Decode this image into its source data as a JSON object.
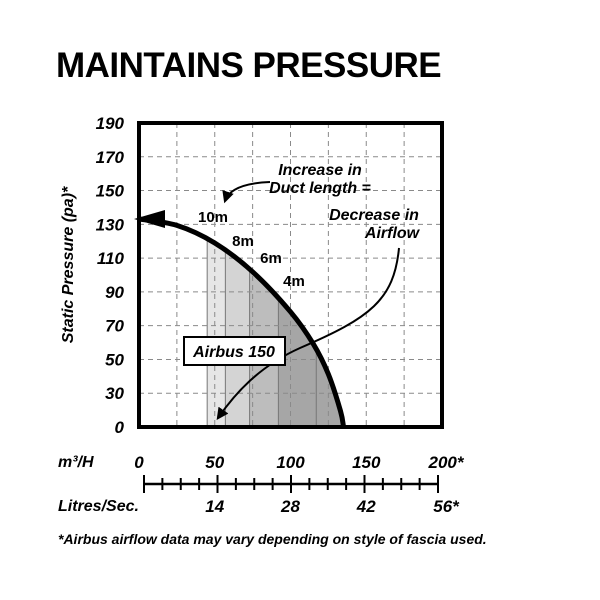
{
  "title": "MAINTAINS PRESSURE",
  "footnote": "*Airbus airflow data may vary depending on style of fascia used.",
  "chart_data": {
    "type": "area",
    "product_label": "Airbus 150",
    "y_axis": {
      "label": "Static Pressure (pa)*",
      "ticks": [
        "190",
        "170",
        "150",
        "130",
        "110",
        "90",
        "70",
        "50",
        "30",
        "0"
      ],
      "range": [
        0,
        190
      ]
    },
    "x_axis_primary": {
      "unit_label": "m³/H",
      "ticks": [
        "0",
        "50",
        "100",
        "150",
        "200*"
      ],
      "range": [
        0,
        200
      ]
    },
    "x_axis_secondary": {
      "unit_label": "Litres/Sec.",
      "ticks": [
        "14",
        "28",
        "42",
        "56*"
      ]
    },
    "grid": true,
    "duct_lengths": [
      {
        "label": "10m",
        "max_airflow_m3h": 57
      },
      {
        "label": "8m",
        "max_airflow_m3h": 73
      },
      {
        "label": "6m",
        "max_airflow_m3h": 92
      },
      {
        "label": "4m",
        "max_airflow_m3h": 117
      }
    ],
    "performance_curve": [
      {
        "x": 0,
        "y": 130
      },
      {
        "x": 25,
        "y": 126
      },
      {
        "x": 50,
        "y": 115
      },
      {
        "x": 75,
        "y": 97
      },
      {
        "x": 100,
        "y": 72
      },
      {
        "x": 115,
        "y": 52
      },
      {
        "x": 125,
        "y": 33
      },
      {
        "x": 133,
        "y": 10
      },
      {
        "x": 135,
        "y": 0
      }
    ],
    "annotations": {
      "increase_line1": "Increase in",
      "increase_line2": "Duct length =",
      "decrease_line1": "Decrease in",
      "decrease_line2": "Airflow"
    },
    "colors": {
      "band_10m": "#e6e6e6",
      "band_8m": "#d4d4d4",
      "band_6m": "#bdbdbd",
      "band_4m": "#a6a6a6",
      "grid": "#8a8a8a",
      "ink": "#000000"
    }
  }
}
